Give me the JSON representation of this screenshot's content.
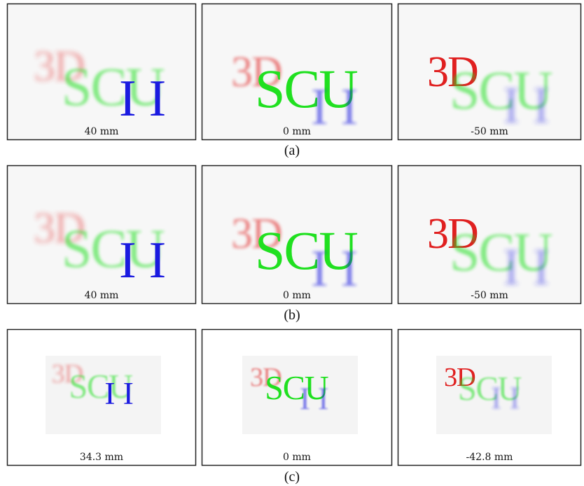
{
  "rows": [
    {
      "caption": "(a)",
      "panels": [
        {
          "texts": [
            "3D",
            "SCU",
            "II"
          ],
          "depth": "40 mm"
        },
        {
          "texts": [
            "3D",
            "SCU",
            "II"
          ],
          "depth": "0 mm"
        },
        {
          "texts": [
            "3D",
            "SCU",
            "II"
          ],
          "depth": "-50 mm"
        }
      ]
    },
    {
      "caption": "(b)",
      "panels": [
        {
          "texts": [
            "3D",
            "SCU",
            "II"
          ],
          "depth": "40 mm"
        },
        {
          "texts": [
            "3D",
            "SCU",
            "II"
          ],
          "depth": "0 mm"
        },
        {
          "texts": [
            "3D",
            "SCU",
            "II"
          ],
          "depth": "-50 mm"
        }
      ]
    },
    {
      "caption": "(c)",
      "panels": [
        {
          "texts": [
            "3D",
            "SCU",
            "II"
          ],
          "depth": "34.3 mm"
        },
        {
          "texts": [
            "3D",
            "SCU",
            "II"
          ],
          "depth": "0 mm"
        },
        {
          "texts": [
            "3D",
            "SCU",
            "II"
          ],
          "depth": "-42.8 mm"
        }
      ]
    }
  ]
}
